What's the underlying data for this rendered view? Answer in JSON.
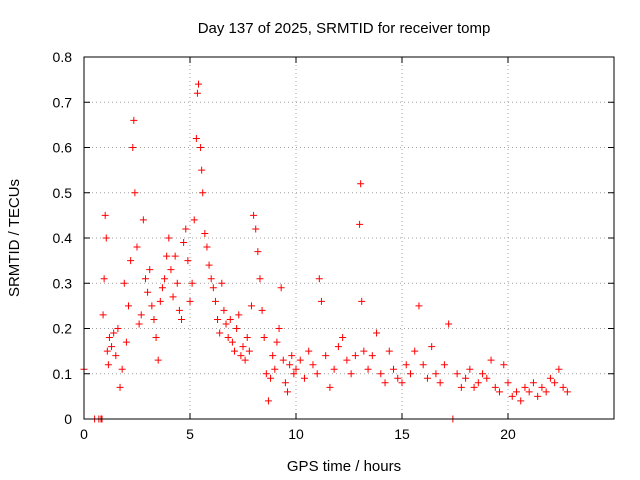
{
  "chart_data": {
    "type": "scatter",
    "title": "Day 137 of 2025, SRMTID for receiver tomp",
    "xlabel": "GPS time / hours",
    "ylabel": "SRMTID / TECUs",
    "xlim": [
      0,
      25
    ],
    "ylim": [
      0,
      0.8
    ],
    "xticks": [
      0,
      5,
      10,
      15,
      20
    ],
    "xtick_labels": [
      "0",
      "5",
      "10",
      "15",
      "20"
    ],
    "yticks": [
      0,
      0.1,
      0.2,
      0.3,
      0.4,
      0.5,
      0.6,
      0.7,
      0.8
    ],
    "ytick_labels": [
      "0",
      "0.1",
      "0.2",
      "0.3",
      "0.4",
      "0.5",
      "0.6",
      "0.7",
      "0.8"
    ],
    "grid": true,
    "marker": "+",
    "color": "#ff0000",
    "series": [
      {
        "name": "SRMTID",
        "points": [
          [
            0.0,
            0.11
          ],
          [
            0.5,
            0.0
          ],
          [
            0.7,
            0.0
          ],
          [
            0.8,
            0.0
          ],
          [
            0.85,
            0.0
          ],
          [
            0.9,
            0.23
          ],
          [
            0.95,
            0.31
          ],
          [
            1.0,
            0.45
          ],
          [
            1.05,
            0.4
          ],
          [
            1.1,
            0.15
          ],
          [
            1.15,
            0.12
          ],
          [
            1.2,
            0.18
          ],
          [
            1.3,
            0.16
          ],
          [
            1.4,
            0.19
          ],
          [
            1.5,
            0.14
          ],
          [
            1.6,
            0.2
          ],
          [
            1.7,
            0.07
          ],
          [
            1.8,
            0.11
          ],
          [
            1.9,
            0.3
          ],
          [
            2.0,
            0.17
          ],
          [
            2.1,
            0.25
          ],
          [
            2.2,
            0.35
          ],
          [
            2.3,
            0.6
          ],
          [
            2.35,
            0.66
          ],
          [
            2.4,
            0.5
          ],
          [
            2.5,
            0.38
          ],
          [
            2.6,
            0.21
          ],
          [
            2.7,
            0.23
          ],
          [
            2.8,
            0.44
          ],
          [
            2.9,
            0.31
          ],
          [
            3.0,
            0.28
          ],
          [
            3.1,
            0.33
          ],
          [
            3.2,
            0.25
          ],
          [
            3.3,
            0.22
          ],
          [
            3.4,
            0.18
          ],
          [
            3.5,
            0.13
          ],
          [
            3.6,
            0.26
          ],
          [
            3.7,
            0.29
          ],
          [
            3.8,
            0.31
          ],
          [
            3.9,
            0.36
          ],
          [
            4.0,
            0.4
          ],
          [
            4.1,
            0.33
          ],
          [
            4.2,
            0.27
          ],
          [
            4.3,
            0.36
          ],
          [
            4.4,
            0.3
          ],
          [
            4.5,
            0.24
          ],
          [
            4.6,
            0.22
          ],
          [
            4.7,
            0.39
          ],
          [
            4.8,
            0.42
          ],
          [
            4.9,
            0.35
          ],
          [
            5.0,
            0.26
          ],
          [
            5.1,
            0.3
          ],
          [
            5.2,
            0.44
          ],
          [
            5.3,
            0.62
          ],
          [
            5.35,
            0.72
          ],
          [
            5.4,
            0.74
          ],
          [
            5.5,
            0.6
          ],
          [
            5.55,
            0.55
          ],
          [
            5.6,
            0.5
          ],
          [
            5.7,
            0.41
          ],
          [
            5.8,
            0.38
          ],
          [
            5.9,
            0.34
          ],
          [
            6.0,
            0.31
          ],
          [
            6.1,
            0.29
          ],
          [
            6.2,
            0.26
          ],
          [
            6.3,
            0.22
          ],
          [
            6.4,
            0.19
          ],
          [
            6.5,
            0.3
          ],
          [
            6.6,
            0.24
          ],
          [
            6.7,
            0.21
          ],
          [
            6.8,
            0.18
          ],
          [
            6.9,
            0.22
          ],
          [
            7.0,
            0.17
          ],
          [
            7.1,
            0.15
          ],
          [
            7.2,
            0.2
          ],
          [
            7.3,
            0.23
          ],
          [
            7.4,
            0.14
          ],
          [
            7.5,
            0.16
          ],
          [
            7.6,
            0.13
          ],
          [
            7.7,
            0.18
          ],
          [
            7.8,
            0.15
          ],
          [
            7.9,
            0.25
          ],
          [
            8.0,
            0.45
          ],
          [
            8.1,
            0.42
          ],
          [
            8.2,
            0.37
          ],
          [
            8.3,
            0.31
          ],
          [
            8.4,
            0.24
          ],
          [
            8.5,
            0.18
          ],
          [
            8.6,
            0.1
          ],
          [
            8.7,
            0.04
          ],
          [
            8.8,
            0.09
          ],
          [
            8.9,
            0.14
          ],
          [
            9.0,
            0.11
          ],
          [
            9.1,
            0.17
          ],
          [
            9.2,
            0.2
          ],
          [
            9.3,
            0.29
          ],
          [
            9.4,
            0.13
          ],
          [
            9.5,
            0.08
          ],
          [
            9.6,
            0.06
          ],
          [
            9.7,
            0.12
          ],
          [
            9.8,
            0.14
          ],
          [
            9.9,
            0.1
          ],
          [
            10.0,
            0.11
          ],
          [
            10.2,
            0.13
          ],
          [
            10.4,
            0.09
          ],
          [
            10.6,
            0.15
          ],
          [
            10.8,
            0.12
          ],
          [
            11.0,
            0.1
          ],
          [
            11.1,
            0.31
          ],
          [
            11.2,
            0.26
          ],
          [
            11.4,
            0.14
          ],
          [
            11.6,
            0.07
          ],
          [
            11.8,
            0.11
          ],
          [
            12.0,
            0.16
          ],
          [
            12.2,
            0.18
          ],
          [
            12.4,
            0.13
          ],
          [
            12.6,
            0.1
          ],
          [
            12.8,
            0.14
          ],
          [
            13.0,
            0.43
          ],
          [
            13.05,
            0.52
          ],
          [
            13.1,
            0.26
          ],
          [
            13.2,
            0.15
          ],
          [
            13.4,
            0.11
          ],
          [
            13.6,
            0.14
          ],
          [
            13.8,
            0.19
          ],
          [
            14.0,
            0.1
          ],
          [
            14.2,
            0.08
          ],
          [
            14.4,
            0.15
          ],
          [
            14.6,
            0.11
          ],
          [
            14.8,
            0.09
          ],
          [
            15.0,
            0.08
          ],
          [
            15.2,
            0.12
          ],
          [
            15.4,
            0.1
          ],
          [
            15.6,
            0.15
          ],
          [
            15.8,
            0.25
          ],
          [
            16.0,
            0.12
          ],
          [
            16.2,
            0.09
          ],
          [
            16.4,
            0.16
          ],
          [
            16.6,
            0.1
          ],
          [
            16.8,
            0.08
          ],
          [
            17.0,
            0.12
          ],
          [
            17.2,
            0.21
          ],
          [
            17.4,
            0.0
          ],
          [
            17.6,
            0.1
          ],
          [
            17.8,
            0.07
          ],
          [
            18.0,
            0.09
          ],
          [
            18.2,
            0.11
          ],
          [
            18.4,
            0.07
          ],
          [
            18.6,
            0.08
          ],
          [
            18.8,
            0.1
          ],
          [
            19.0,
            0.09
          ],
          [
            19.2,
            0.13
          ],
          [
            19.4,
            0.07
          ],
          [
            19.6,
            0.06
          ],
          [
            19.8,
            0.12
          ],
          [
            20.0,
            0.08
          ],
          [
            20.2,
            0.05
          ],
          [
            20.4,
            0.06
          ],
          [
            20.6,
            0.04
          ],
          [
            20.8,
            0.07
          ],
          [
            21.0,
            0.06
          ],
          [
            21.2,
            0.08
          ],
          [
            21.4,
            0.05
          ],
          [
            21.6,
            0.07
          ],
          [
            21.8,
            0.06
          ],
          [
            22.0,
            0.09
          ],
          [
            22.2,
            0.08
          ],
          [
            22.4,
            0.11
          ],
          [
            22.6,
            0.07
          ],
          [
            22.8,
            0.06
          ]
        ]
      }
    ]
  }
}
